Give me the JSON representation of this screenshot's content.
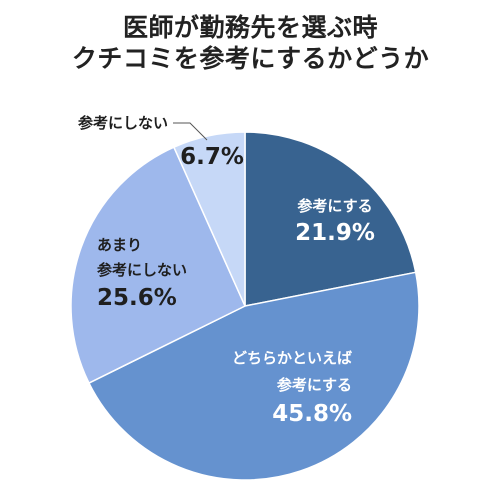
{
  "title_lines": [
    "医師が勤務先を選ぶ時",
    "クチコミを参考にするかどうか"
  ],
  "chart_data": {
    "type": "pie",
    "title": "医師が勤務先を選ぶ時クチコミを参考にするかどうか",
    "start_angle_deg": 0,
    "direction": "clockwise",
    "slices": [
      {
        "label": "参考にする",
        "value": 21.9,
        "value_text": "21.9%",
        "color": "#386390",
        "text_color": "#ffffff"
      },
      {
        "label": "どちらかといえば参考にする",
        "value": 45.8,
        "value_text": "45.8%",
        "color": "#6592cf",
        "text_color": "#ffffff"
      },
      {
        "label": "あまり参考にしない",
        "value": 25.6,
        "value_text": "25.6%",
        "color": "#9eb8ec",
        "text_color": "#1f1f1f"
      },
      {
        "label": "参考にしない",
        "value": 6.7,
        "value_text": "6.7%",
        "color": "#c6d8f7",
        "text_color": "#1f1f1f"
      }
    ],
    "labels": [
      {
        "lines": [
          "参考にする"
        ],
        "pct": "21.9%"
      },
      {
        "lines": [
          "どちらかといえば",
          "参考にする"
        ],
        "pct": "45.8%"
      },
      {
        "lines": [
          "あまり",
          "参考にしない"
        ],
        "pct": "25.6%"
      },
      {
        "lines": [
          "参考にしない"
        ],
        "pct": "6.7%"
      }
    ]
  }
}
